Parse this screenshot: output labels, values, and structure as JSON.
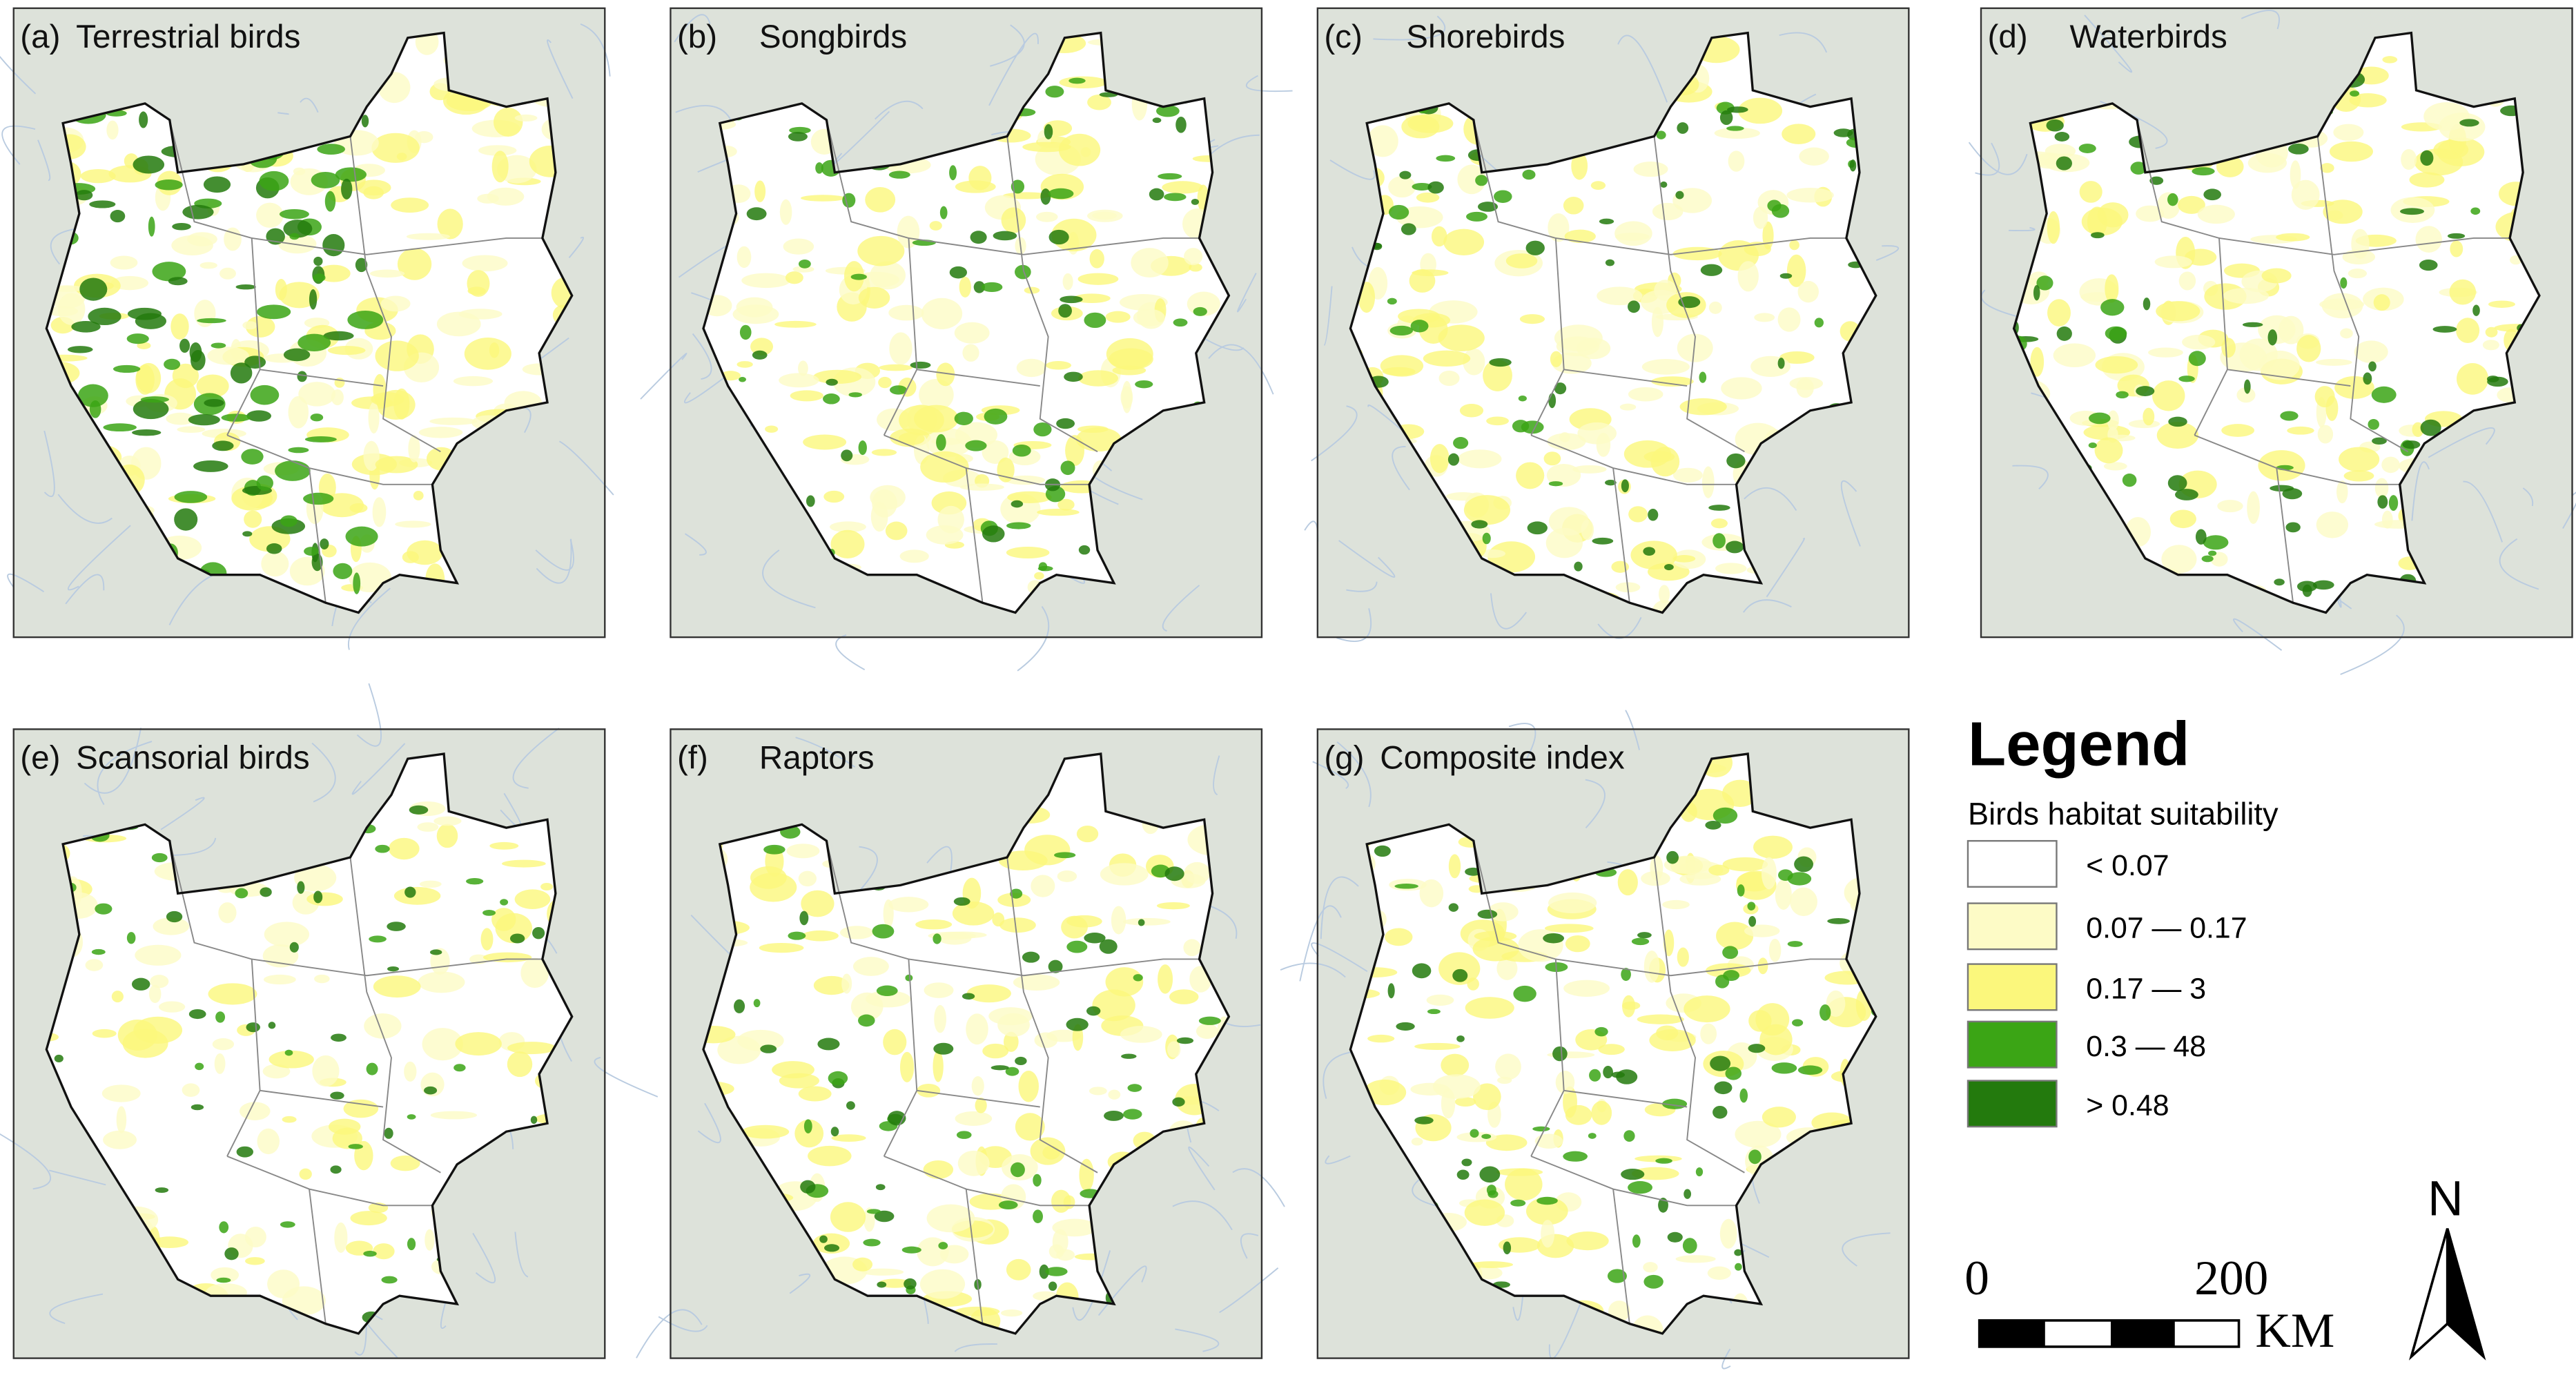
{
  "figure": {
    "panels": [
      {
        "label": "(a)",
        "title": "Terrestrial birds"
      },
      {
        "label": "(b)",
        "title": "Songbirds"
      },
      {
        "label": "(c)",
        "title": "Shorebirds"
      },
      {
        "label": "(d)",
        "title": "Waterbirds"
      },
      {
        "label": "(e)",
        "title": "Scansorial birds"
      },
      {
        "label": "(f)",
        "title": "Raptors"
      },
      {
        "label": "(g)",
        "title": "Composite index"
      }
    ],
    "legend": {
      "title": "Legend",
      "subtitle": "Birds habitat suitability",
      "classes": [
        {
          "label": "< 0.07",
          "color": "#ffffff"
        },
        {
          "label": "0.07 — 0.17",
          "color": "#fdfbc6"
        },
        {
          "label": "0.17 — 3",
          "color": "#fbf77c"
        },
        {
          "label": "0.3 — 48",
          "color": "#3ba515"
        },
        {
          "label": "> 0.48",
          "color": "#237a0d"
        }
      ]
    },
    "scale_bar": {
      "start": "0",
      "end": "200",
      "unit": "KM"
    },
    "north_arrow": "N"
  }
}
